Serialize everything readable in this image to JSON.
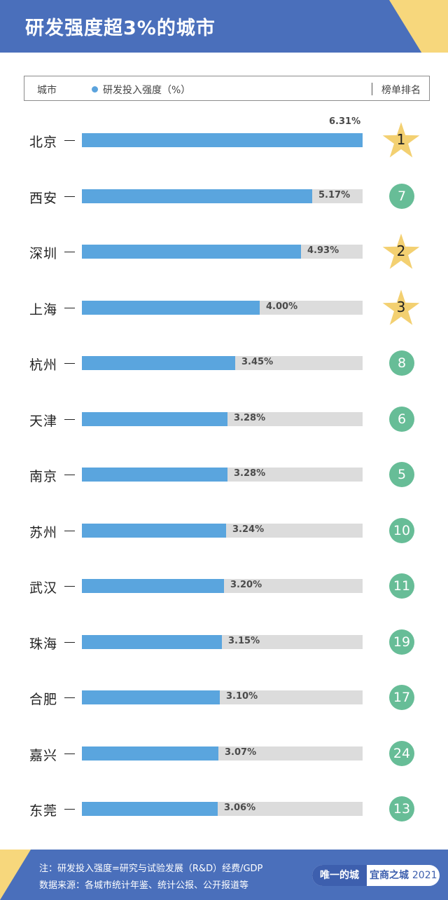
{
  "header": {
    "title": "研发强度超3%的城市"
  },
  "legend": {
    "city_column": "城市",
    "series_name": "研发投入强度（%）",
    "rank_column": "榜单排名"
  },
  "colors": {
    "header_bg": "#4a6fbb",
    "accent": "#f7d77c",
    "bar": "#5aa5de",
    "track": "#dcdcdc",
    "badge": "#67bd97",
    "star": "#f3d071"
  },
  "chart_data": {
    "type": "bar",
    "orientation": "horizontal",
    "title": "研发强度超3%的城市",
    "xlabel": "研发投入强度（%）",
    "ylabel": "城市",
    "xlim": [
      0,
      6.31
    ],
    "categories": [
      "北京",
      "西安",
      "深圳",
      "上海",
      "杭州",
      "天津",
      "南京",
      "苏州",
      "武汉",
      "珠海",
      "合肥",
      "嘉兴",
      "东莞"
    ],
    "series": [
      {
        "name": "研发投入强度（%）",
        "values": [
          6.31,
          5.17,
          4.93,
          4.0,
          3.45,
          3.28,
          3.28,
          3.24,
          3.2,
          3.15,
          3.1,
          3.07,
          3.06
        ]
      }
    ],
    "rows": [
      {
        "city": "北京",
        "value": 6.31,
        "value_label": "6.31%",
        "rank": "1",
        "rank_style": "star"
      },
      {
        "city": "西安",
        "value": 5.17,
        "value_label": "5.17%",
        "rank": "7",
        "rank_style": "circle"
      },
      {
        "city": "深圳",
        "value": 4.93,
        "value_label": "4.93%",
        "rank": "2",
        "rank_style": "star"
      },
      {
        "city": "上海",
        "value": 4.0,
        "value_label": "4.00%",
        "rank": "3",
        "rank_style": "star"
      },
      {
        "city": "杭州",
        "value": 3.45,
        "value_label": "3.45%",
        "rank": "8",
        "rank_style": "circle"
      },
      {
        "city": "天津",
        "value": 3.28,
        "value_label": "3.28%",
        "rank": "6",
        "rank_style": "circle"
      },
      {
        "city": "南京",
        "value": 3.28,
        "value_label": "3.28%",
        "rank": "5",
        "rank_style": "circle"
      },
      {
        "city": "苏州",
        "value": 3.24,
        "value_label": "3.24%",
        "rank": "10",
        "rank_style": "circle"
      },
      {
        "city": "武汉",
        "value": 3.2,
        "value_label": "3.20%",
        "rank": "11",
        "rank_style": "circle"
      },
      {
        "city": "珠海",
        "value": 3.15,
        "value_label": "3.15%",
        "rank": "19",
        "rank_style": "circle"
      },
      {
        "city": "合肥",
        "value": 3.1,
        "value_label": "3.10%",
        "rank": "17",
        "rank_style": "circle"
      },
      {
        "city": "嘉兴",
        "value": 3.07,
        "value_label": "3.07%",
        "rank": "24",
        "rank_style": "circle"
      },
      {
        "city": "东莞",
        "value": 3.06,
        "value_label": "3.06%",
        "rank": "13",
        "rank_style": "circle"
      }
    ]
  },
  "footer": {
    "note": "注：研发投入强度=研究与试验发展（R&D）经费/GDP",
    "source": "数据来源：各城市统计年鉴、统计公报、公开报道等",
    "brand_left": "唯一的城",
    "brand_right": "宜商之城",
    "brand_year": "2021"
  }
}
